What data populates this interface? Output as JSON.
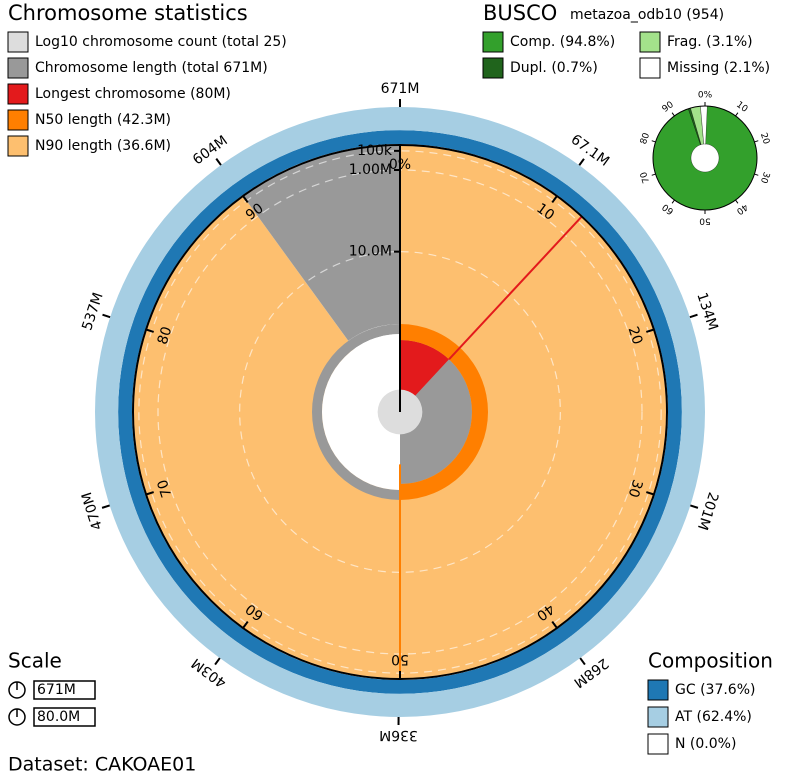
{
  "chart_data": {
    "type": "snail",
    "title": "Chromosome statistics",
    "legend": [
      {
        "label": "Log10 chromosome count (total 25)",
        "color": "#dddddd"
      },
      {
        "label": "Chromosome length (total 671M)",
        "color": "#999999"
      },
      {
        "label": "Longest chromosome (80M)",
        "color": "#e31a1c"
      },
      {
        "label": "N50 length (42.3M)",
        "color": "#ff7f00"
      },
      {
        "label": "N90 length (36.6M)",
        "color": "#fdbf6f"
      }
    ],
    "count": 25,
    "total_length": 671,
    "longest": 80,
    "n50": 42.3,
    "n90": 36.6,
    "length_ticks": [
      {
        "value": 67.1,
        "label": "67.1M"
      },
      {
        "value": 134,
        "label": "134M"
      },
      {
        "value": 201,
        "label": "201M"
      },
      {
        "value": 268,
        "label": "268M"
      },
      {
        "value": 336,
        "label": "336M"
      },
      {
        "value": 403,
        "label": "403M"
      },
      {
        "value": 470,
        "label": "470M"
      },
      {
        "value": 537,
        "label": "537M"
      },
      {
        "value": 604,
        "label": "604M"
      },
      {
        "value": 671,
        "label": "671M"
      }
    ],
    "percent_ticks": [
      {
        "value": 0,
        "label": "0%"
      },
      10,
      20,
      30,
      40,
      50,
      60,
      70,
      80,
      90
    ],
    "radial_ticks": [
      {
        "value": 0.1,
        "label": "100k"
      },
      {
        "value": 1,
        "label": "1.00M"
      },
      {
        "value": 10,
        "label": "10.0M"
      }
    ],
    "busco": {
      "title": "BUSCO",
      "lineage": "metazoa_odb10 (954)",
      "series": [
        {
          "name": "Comp. (94.8%)",
          "color": "#33a02c",
          "value": 94.8
        },
        {
          "name": "Dupl. (0.7%)",
          "color": "#20641c",
          "value": 0.7
        },
        {
          "name": "Frag. (3.1%)",
          "color": "#a3e28b",
          "value": 3.1
        },
        {
          "name": "Missing (2.1%)",
          "color": "#ffffff",
          "value": 2.1
        }
      ],
      "ticks": [
        {
          "value": 0,
          "label": "0%"
        },
        10,
        20,
        30,
        40,
        50,
        60,
        70,
        80,
        90
      ]
    },
    "composition": {
      "title": "Composition",
      "series": [
        {
          "name": "GC (37.6%)",
          "color": "#1f78b4",
          "value": 37.6
        },
        {
          "name": "AT (62.4%)",
          "color": "#a6cee3",
          "value": 62.4
        },
        {
          "name": "N (0.0%)",
          "color": "#ffffff",
          "value": 0
        }
      ]
    },
    "scale": {
      "title": "Scale",
      "labels": [
        "671M",
        "80.0M"
      ]
    },
    "dataset": "Dataset: CAKOAE01"
  }
}
